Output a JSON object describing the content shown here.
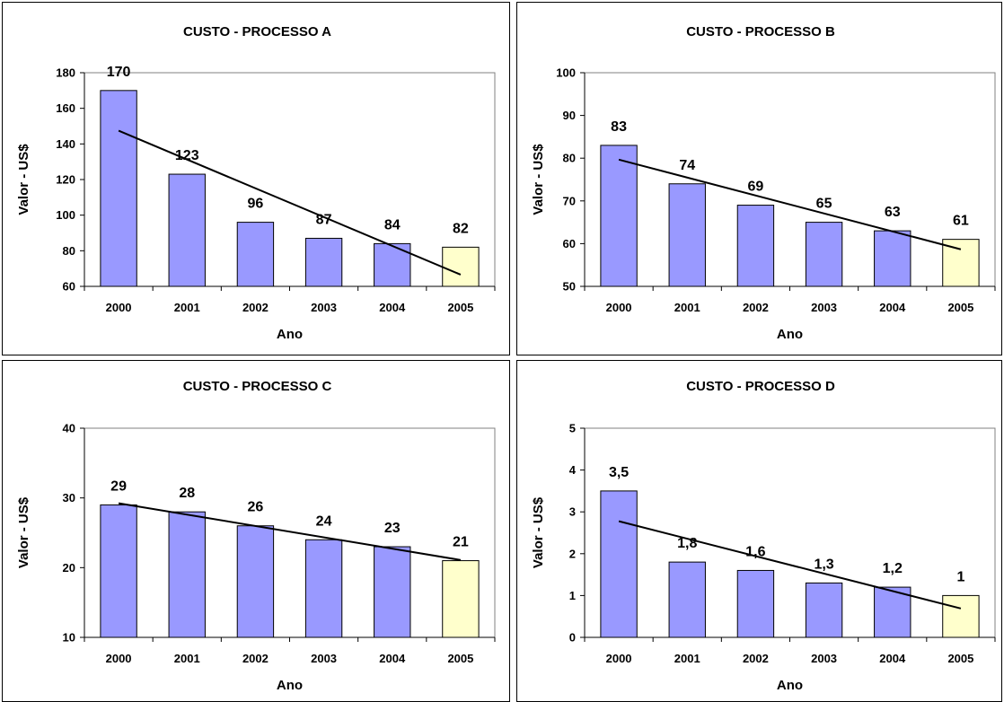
{
  "chart_data": [
    {
      "type": "bar",
      "title": "CUSTO - PROCESSO A",
      "xlabel": "Ano",
      "ylabel": "Valor - US$",
      "categories": [
        "2000",
        "2001",
        "2002",
        "2003",
        "2004",
        "2005"
      ],
      "values": [
        170,
        123,
        96,
        87,
        84,
        82
      ],
      "data_labels": [
        "170",
        "123",
        "96",
        "87",
        "84",
        "82"
      ],
      "ylim": [
        60,
        180
      ],
      "yticks": [
        "60",
        "80",
        "100",
        "120",
        "140",
        "160",
        "180"
      ],
      "trendline": "linear",
      "colors": {
        "bar": "#9999ff",
        "last_bar": "#ffffcc",
        "trend": "#000000"
      }
    },
    {
      "type": "bar",
      "title": "CUSTO - PROCESSO B",
      "xlabel": "Ano",
      "ylabel": "Valor - US$",
      "categories": [
        "2000",
        "2001",
        "2002",
        "2003",
        "2004",
        "2005"
      ],
      "values": [
        83,
        74,
        69,
        65,
        63,
        61
      ],
      "data_labels": [
        "83",
        "74",
        "69",
        "65",
        "63",
        "61"
      ],
      "ylim": [
        50,
        100
      ],
      "yticks": [
        "50",
        "60",
        "70",
        "80",
        "90",
        "100"
      ],
      "trendline": "linear",
      "colors": {
        "bar": "#9999ff",
        "last_bar": "#ffffcc",
        "trend": "#000000"
      }
    },
    {
      "type": "bar",
      "title": "CUSTO - PROCESSO C",
      "xlabel": "Ano",
      "ylabel": "Valor - US$",
      "categories": [
        "2000",
        "2001",
        "2002",
        "2003",
        "2004",
        "2005"
      ],
      "values": [
        29,
        28,
        26,
        24,
        23,
        21
      ],
      "data_labels": [
        "29",
        "28",
        "26",
        "24",
        "23",
        "21"
      ],
      "ylim": [
        10,
        40
      ],
      "yticks": [
        "10",
        "20",
        "30",
        "40"
      ],
      "trendline": "linear",
      "colors": {
        "bar": "#9999ff",
        "last_bar": "#ffffcc",
        "trend": "#000000"
      }
    },
    {
      "type": "bar",
      "title": "CUSTO - PROCESSO D",
      "xlabel": "Ano",
      "ylabel": "Valor - US$",
      "categories": [
        "2000",
        "2001",
        "2002",
        "2003",
        "2004",
        "2005"
      ],
      "values": [
        3.5,
        1.8,
        1.6,
        1.3,
        1.2,
        1
      ],
      "data_labels": [
        "3,5",
        "1,8",
        "1,6",
        "1,3",
        "1,2",
        "1"
      ],
      "ylim": [
        0,
        5
      ],
      "yticks": [
        "0",
        "1",
        "2",
        "3",
        "4",
        "5"
      ],
      "trendline": "linear",
      "colors": {
        "bar": "#9999ff",
        "last_bar": "#ffffcc",
        "trend": "#000000"
      }
    }
  ]
}
